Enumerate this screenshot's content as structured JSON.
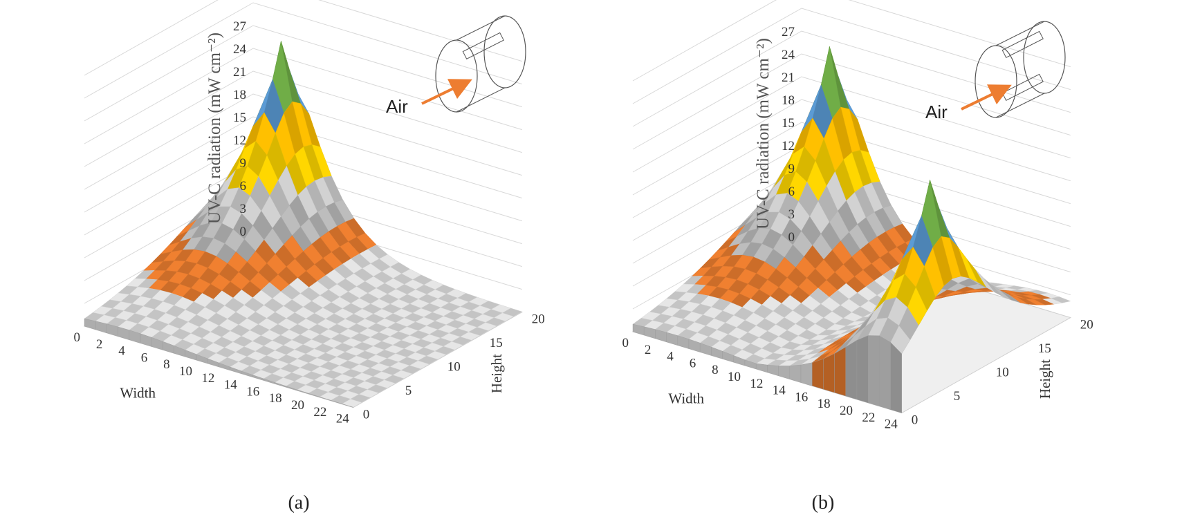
{
  "chart_data": [
    {
      "type": "surface",
      "panel_label": "(a)",
      "zlabel": "UV-C radiation (mW cm⁻²)",
      "xlabel": "Width",
      "ylabel": "Height",
      "z_ticks": [
        "0",
        "3",
        "6",
        "9",
        "12",
        "15",
        "18",
        "21",
        "24",
        "27"
      ],
      "x_ticks": [
        "0",
        "2",
        "4",
        "6",
        "8",
        "10",
        "12",
        "14",
        "16",
        "18",
        "20",
        "22",
        "24"
      ],
      "y_ticks": [
        "0",
        "5",
        "10",
        "15",
        "20"
      ],
      "zlim": [
        0,
        27
      ],
      "inset": {
        "label": "Air",
        "lamps": 1
      },
      "band_colors": {
        "0-3": "#e6e6e6",
        "3-6": "#f08030",
        "6-9": "#bdbdbd",
        "9-12": "#d2d2d2",
        "12-15": "#ffd700",
        "15-18": "#ffc000",
        "18-21": "#5b9bd5",
        "21-24": "#70ad47",
        "24-27": "#a5a5a5",
        "27-30": "#c55a11"
      },
      "peaks": [
        {
          "width": 4,
          "height": 18,
          "max_z": 28
        }
      ]
    },
    {
      "type": "surface",
      "panel_label": "(b)",
      "zlabel": "UV-C radiation (mW cm⁻²)",
      "xlabel": "Width",
      "ylabel": "Height",
      "z_ticks": [
        "0",
        "3",
        "6",
        "9",
        "12",
        "15",
        "18",
        "21",
        "24",
        "27"
      ],
      "x_ticks": [
        "0",
        "2",
        "4",
        "6",
        "8",
        "10",
        "12",
        "14",
        "16",
        "18",
        "20",
        "22",
        "24"
      ],
      "y_ticks": [
        "0",
        "5",
        "10",
        "15",
        "20"
      ],
      "zlim": [
        0,
        27
      ],
      "inset": {
        "label": "Air",
        "lamps": 2
      },
      "band_colors": {
        "0-3": "#e6e6e6",
        "3-6": "#f08030",
        "6-9": "#bdbdbd",
        "9-12": "#d2d2d2",
        "12-15": "#ffd700",
        "15-18": "#ffc000",
        "18-21": "#5b9bd5",
        "21-24": "#70ad47",
        "24-27": "#a5a5a5",
        "27-30": "#c55a11"
      },
      "peaks": [
        {
          "width": 4,
          "height": 18,
          "max_z": 28
        },
        {
          "width": 22,
          "height": 6,
          "max_z": 26
        }
      ]
    }
  ]
}
